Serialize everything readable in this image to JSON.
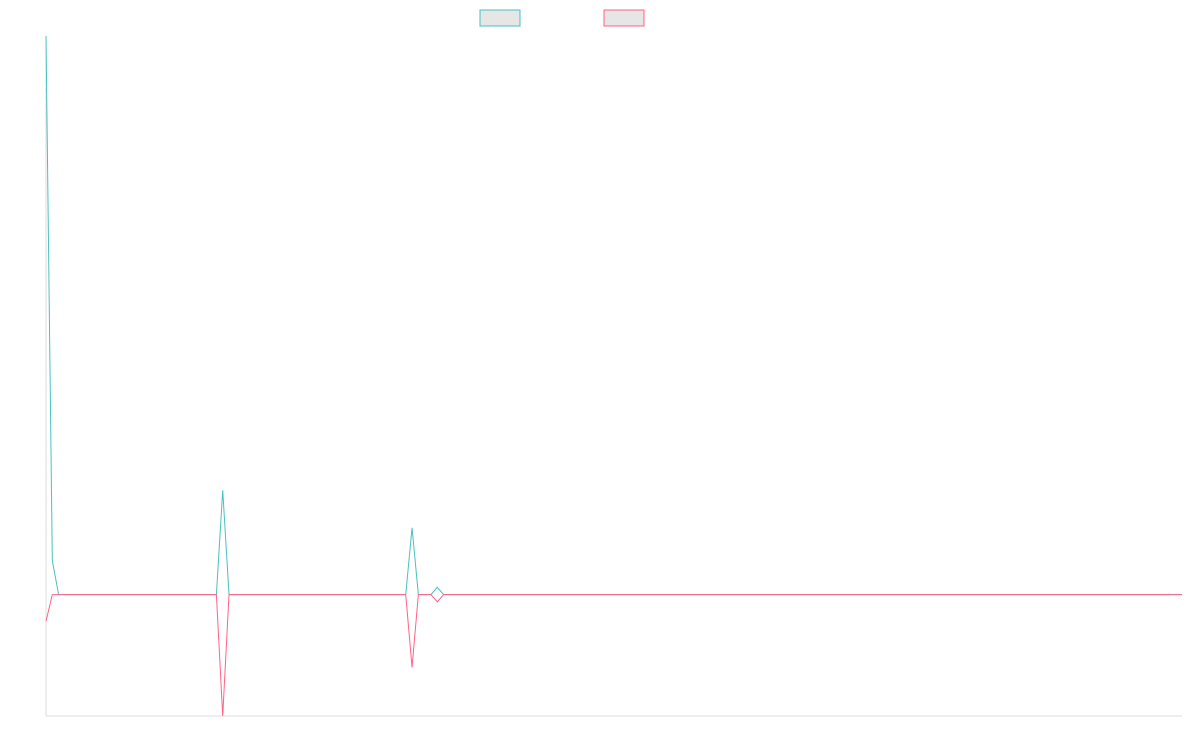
{
  "chart_data": {
    "type": "line",
    "title": "",
    "xlabel": "",
    "ylabel": "",
    "grid": false,
    "legend_position": "top",
    "x": [
      0,
      1,
      2,
      27,
      28,
      29,
      57,
      58,
      59,
      61,
      62,
      63,
      180
    ],
    "xlim": [
      0,
      180
    ],
    "ylim": [
      -1.0,
      4.6
    ],
    "series": [
      {
        "name": "",
        "color": "#4bc0c0",
        "values": [
          4.6,
          0.28,
          0.0,
          0.0,
          0.86,
          0.0,
          0.0,
          0.55,
          0.0,
          0.0,
          0.06,
          0.0,
          0.0
        ]
      },
      {
        "name": "",
        "color": "#ff6384",
        "values": [
          -0.22,
          0.0,
          0.0,
          0.0,
          -1.0,
          0.0,
          0.0,
          -0.6,
          0.0,
          0.0,
          -0.06,
          0.0,
          0.0
        ]
      }
    ]
  }
}
